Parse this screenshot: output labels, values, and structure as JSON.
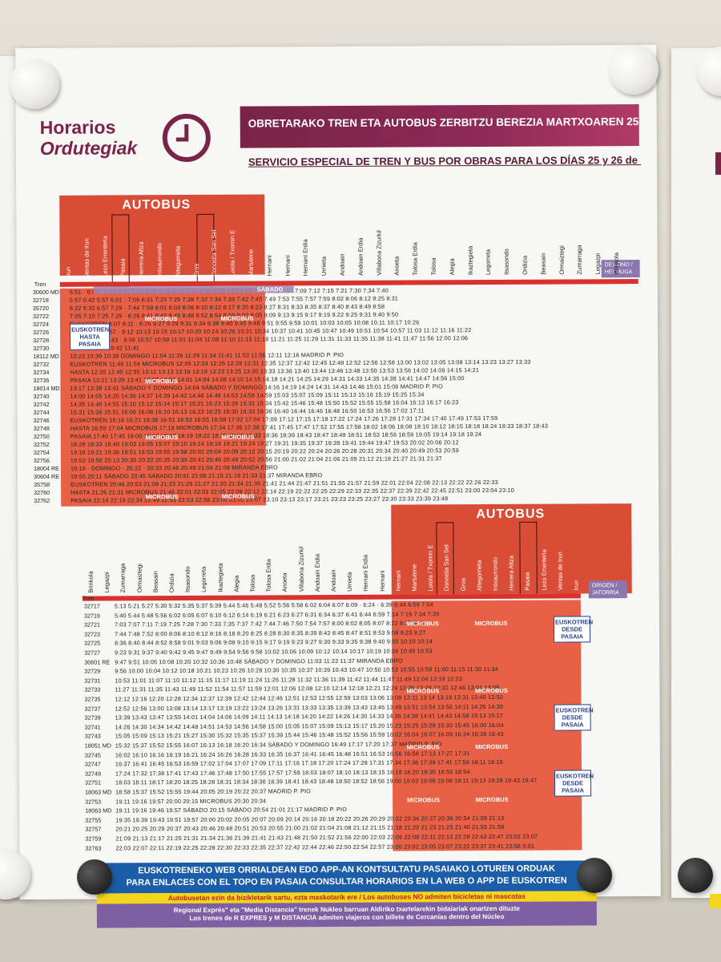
{
  "header": {
    "title_line1": "Horarios",
    "title_line2": "Ordutegiak",
    "banner_eu": "OBRETARAKO TREN ETA AUTOBUS ZERBITZU BEREZIA MARTXOAREN 25 ETA 26rako",
    "subtitle_es": "SERVICIO ESPECIAL DE TREN Y BUS POR OBRAS PARA LOS DÍAS 25 y 26 de  MARZO"
  },
  "top_table": {
    "bus_label": "AUTOBUS",
    "train_label": "Tren",
    "destination_label": "DESTINO / HELMUGA",
    "stations": [
      "Irun",
      "Ventas de Irun",
      "Lezo Errenteria",
      "Pasaia",
      "Herrera Altza",
      "Intxaurrondo",
      "Altegorrieta",
      "Gros",
      "Donostia San Sebastian",
      "Loiola / Txomin Enea",
      "Martutene",
      "Hernani",
      "Hernani",
      "Hernani Erdia",
      "Urnieta",
      "Andoain",
      "Andoain Erdia",
      "Villabona Zizurkil",
      "Anoeta",
      "Tolosa Erdia",
      "Tolosa",
      "Alegia",
      "Ikaztegieta",
      "Legorreta",
      "Itsasondo",
      "Ordizia",
      "Beasain",
      "Ormaiztegi",
      "Zumarraga",
      "Legazpi",
      "Brinkola"
    ],
    "rows": [
      {
        "train": "30600 MD",
        "times": "5:51  ·  6:07    ·   6:16    6:31  6:33 6:35  6:38  6:42  6:44  6:49  6:52  6:55  6:59  7:03  7:05  7:07  7:09  7:12  7:15  7:21  7:30  7:34  7:40"
      },
      {
        "train": "32718",
        "times": "5:57 6:42 5:57 6:01   ·   7:06    6:31  7:23  7:25  7:28  7:32  7:34  7:39  7:42  7:45  7:49  7:53  7:55  7:57  7:59  8:02  8:06  8:12  8:25  8:31"
      },
      {
        "train": "35720",
        "times": "6:22 6:32 6:57 7:29   ·   7:44    7:59  8:01  8:03  8:06  8:10  8:12  8:17  8:20  8:23  8:27  8:31  8:33  8:35  8:37  8:40  8:43  8:49  8:58"
      },
      {
        "train": "32722",
        "times": "7:05 7:10 7:25 7:29   ·   8:26    8:41  8:43  8:45  8:48  8:52  8:54  8:59  9:02  9:05  9:09  9:13  9:15  9:17  9:19  9:22  9:25  9:31  9:40  9:50"
      },
      {
        "train": "32724",
        "times": "EUSKOTREN  8:07  8:11   ·   8:26    9:27  9:29  9:31  9:34  9:38  9:40  9:45  9:48  9:51  9:55  9:59 10:01 10:03 10:05 10:08 10:11 10:17 10:26"
      },
      {
        "train": "32726",
        "times": "HASTA   8:53  8:57   ·   9:12    10:13 10:15 10:17 10:20 10:24 10:26 10:31 10:34 10:37 10:41 10:45 10:47 10:49 10:51 10:54 10:57 11:03 11:12 11:16 11:22"
      },
      {
        "train": "32728",
        "times": "PASAIA  9:39  9:43   ·   9:58    10:57 10:59 11:01 11:04 11:08 11:10 11:15 11:18 11:21 11:25 11:29 11:31 11:33 11:35 11:38 11:41 11:47 11:56 12:00 12:06"
      },
      {
        "train": "32730",
        "times": "10:22 10:27   ·   10:42   11:41"
      },
      {
        "train": "18112 MD",
        "times": "10:23  10:36 10:38  DOMINGO  11:04   11:26 11:29 11:34   11:41   11:53 11:56 12:11 12:16   MADRID P. PIO"
      },
      {
        "train": "32732",
        "times": "EUSKOTREN 11:49 11:54 MICROBUS 12:09  12:24 12:26 12:28 12:31 12:35 12:37 12:42 12:45 12:48 12:52 12:56 12:58 13:00 13:02 13:05 13:08 13:14 13:23 13:27 13:33"
      },
      {
        "train": "32734",
        "times": "HASTA 12:35 12:40   12:55  13:11 13:13 13:16 13:19 13:23 13:25 13:30 13:33 13:36 13:40 13:44 13:46 13:48 13:50 13:53 13:56 14:02 14:09 14:15 14:21"
      },
      {
        "train": "32736",
        "times": "PASAIA 13:21 13:26   13:41  13:57 13:59 14:01 14:04 14:08 14:10 14:15 14:18 14:21 14:25 14:29 14:31 14:33 14:35 14:38 14:41 14:47 14:56 15:00"
      },
      {
        "train": "18014 MD",
        "times": "13:17  13:38 13:41  SÁBADO Y DOMINGO  14:04  SÁBADO Y DOMINGO  14:16 14:19 14:24  14:31  14:43 14:46  15:01 15:06  MADRID P. PIO"
      },
      {
        "train": "32740",
        "times": "14:00 14:05   14:20   14:36 14:37 14:39 14:42 14:46 14:48 14:53 14:56 14:59 15:03 15:07 15:09 15:11 15:13 15:16 15:19 15:25 15:34"
      },
      {
        "train": "32742",
        "times": "14:35 14:40   14:55   15:10 15:12 15:14 15:17 15:21 15:23 15:28 15:31 15:34 15:42 15:46 15:48 15:50 15:52 15:55 15:58 16:04 16:13 16:17 16:23"
      },
      {
        "train": "32744",
        "times": "15:31 15:36   15:51   16:06 16:08 16:10 16:13 16:23 16:25 16:30 16:33 16:36 16:40 16:44 16:46 16:48 16:50 16:53 16:56 17:02 17:11"
      },
      {
        "train": "32746",
        "times": "EUSKOTREN 16:16 16:21   16:36   16:51 16:53 16:55 16:58 17:02 17:04 17:09 17:12 17:15 17:18 17:22 17:24 17:26 17:28 17:31 17:34 17:40 17:49 17:53 17:59"
      },
      {
        "train": "32748",
        "times": "HASTA 16:59 17:04 MICROBUS 17:19  MICROBUS  17:34 17:36 17:38 17:41 17:45 17:47 17:52 17:55 17:58 18:02 18:06 18:08 18:10 18:12 18:15 18:18 18:24 18:33 18:37 18:43"
      },
      {
        "train": "32750",
        "times": "PASAIA 17:40 17:45   18:00   18:16 18:17 18:19 18:22 18:26 18:28 18:33 18:36 18:39 18:43 18:47 18:49 18:51 18:53 18:56 18:59 19:05 19:14 19:18 19:24"
      },
      {
        "train": "32752",
        "times": "18:28 18:33   18:48   19:03 19:05 19:07 19:10 19:14 19:16 19:21 19:24 19:27 19:31 19:35 19:37 19:39 19:41 19:44 19:47 19:53 20:02 20:06 20:12"
      },
      {
        "train": "32754",
        "times": "19:16 19:21   19:36   19:51 19:53 19:55 19:58 20:02 20:04 20:09 20:12 20:15 20:19 20:22 20:24 20:26 20:28 20:31 20:34 20:40 20:49 20:53 20:59"
      },
      {
        "train": "32756",
        "times": "19:53 19:58   20:13   20:30 20:32 20:35 20:39 20:41 20:46 20:49 20:52 20:56 21:00 21:02 21:04 21:06 21:09 21:12 21:18 21:27 21:31 21:37"
      },
      {
        "train": "18004 RE",
        "times": "19:16  ·  DOMINGO  ·  20:22  ·  20:33  20:46 20:49  21:04 21:08  MIRANDA EBRO"
      },
      {
        "train": "30604 RE",
        "times": "19:56  20:11  SÁBADO  20:45  SÁBADO  20:51  21:06  21:15 21:18  21:33 21:37  MIRANDA EBRO"
      },
      {
        "train": "35758",
        "times": "EUSKOTREN 20:46 20:53   21:08   21:23 21:25 21:27 21:30 21:34 21:36 21:41 21:44 21:47 21:51 21:55 21:57 21:59 22:01 22:04 22:08 22:13 22:22 22:26 22:33"
      },
      {
        "train": "32760",
        "times": "HASTA 21:26 21:31 MICROBUS 21:46  22:01 22:03 22:05 22:08 22:12 22:14 22:19 22:22 22:25 22:29 22:33 22:35 22:37 22:39 22:42 22:45 22:51 23:00 23:04 23:10"
      },
      {
        "train": "32762",
        "times": "PASAIA 22:14 22:19   22:34   22:49 22:51 22:53 22:56 23:00 23:02 23:07 23:10 23:13 23:17 23:21 23:23 23:25 23:27 23:30 23:33 23:39 23:48"
      }
    ],
    "band_sabado": "SÁBADO",
    "band_domingo": "DOMINGO",
    "band_sab_dom": "SÁBADO Y DOMINGO",
    "microbus": "MICROBUS",
    "euskotren_hasta": [
      "EUSKOTREN",
      "HASTA",
      "PASAIA"
    ],
    "dest_madrid": "MADRID P. PIO",
    "dest_miranda": "MIRANDA EBRO"
  },
  "bottom_table": {
    "bus_label": "AUTOBUS",
    "train_label": "Tren",
    "origin_label": "ORIGEN / JATORRIA",
    "stations": [
      "Brinkola",
      "Legazpi",
      "Zumarraga",
      "Ormaiztegi",
      "Beasain",
      "Ordizia",
      "Itsasondo",
      "Legorreta",
      "Ikaztegieta",
      "Alegia",
      "Tolosa",
      "Tolosa Erdia",
      "Anoeta",
      "Villabona Zizurkil",
      "Andoain Erdia",
      "Andoain",
      "Urnieta",
      "Hernani Erdia",
      "Hernani",
      "Hernani",
      "Martutene",
      "Loiola / Txomin Enea",
      "Donostia San Sebastian",
      "Gros",
      "Altegorrieta",
      "Intxaurrondo",
      "Herrera Altza",
      "Pasaia",
      "Lezo Errenteria",
      "Ventas de Irun",
      "Irun"
    ],
    "rows": [
      {
        "train": "32717",
        "times": "5:13 5:21 5:27 5:30 5:32 5:35 5:37 5:39 5:44 5:46 5:48 5:52 5:56 5:58 6:02 6:04 6:07 6:09  ·  6:24  ·  6:39 6:44 6:59 7:04"
      },
      {
        "train": "32719",
        "times": "5:40 5:44 5:48 5:56 6:02 6:05 6:07 6:10 6:12 6:14 6:19 6:21 6:23 6:27 6:31 6:34 6:37 6:41 6:44  6:59  7:14 7:19 7:34 7:39"
      },
      {
        "train": "32721",
        "times": "7:03 7:07 7:11 7:19 7:25 7:28 7:30 7:33 7:35 7:37 7:42 7:44 7:46 7:50 7:54 7:57 8:00 8:02 8:05 8:07  8:22  8:37 8:41"
      },
      {
        "train": "32723",
        "times": "7:44 7:48 7:52 8:00 8:06 8:10 8:12 8:16 8:18 8:20 8:25 8:28 8:30 8:35 8:39 8:42 8:45 8:47 8:51 8:53  9:08  9:23 9:27"
      },
      {
        "train": "32725",
        "times": "8:36 8:40 8:44 8:52 8:58 9:01 9:03 9:06 9:08 9:10 9:15 9:17 9:19 9:23 9:27 9:30 9:33 9:35 9:38 9:40  9:55  10:10 10:14"
      },
      {
        "train": "32727",
        "times": "9:23 9:31 9:37 9:40 9:42 9:45 9:47 9:49 9:54 9:56 9:58 10:02 10:06 10:09 10:12 10:14 10:17 10:19  10:34  10:49 10:53"
      },
      {
        "train": "30601 RE",
        "times": "9:47 9:51  10:05 10:08  10:20  10:32 10:36  10:48  SÁBADO Y DOMINGO  11:03  11:22 11:37  MIRANDA EBRO"
      },
      {
        "train": "32729",
        "times": "9:56 10:00 10:04 10:12 10:18 10:21 10:23 10:26 10:28 10:30 10:35 10:37 10:39 10:43 10:47 10:50 10:53 10:55 10:58 11:00  11:15  11:30 11:34"
      },
      {
        "train": "32731",
        "times": "10:53 11:01 11:07 11:10 11:12 11:15 11:17 11:19 11:24 11:26 11:28 11:32 11:36 11:39 11:42 11:44 11:47 11:49  12:04  12:19 12:23"
      },
      {
        "train": "32733",
        "times": "11:27 11:31 11:35 11:43 11:49 11:52 11:54 11:57 11:59 12:01 12:06 12:08 12:10 12:14 12:18 12:21 12:24 12:26 12:29 12:31  12:46  13:01 13:05"
      },
      {
        "train": "32735",
        "times": "12:12 12:16 12:20 12:28 12:34 12:37 12:39 12:42 12:44 12:46 12:51 12:53 12:55 12:59 13:03 13:06 13:09 13:11 13:14 13:16  13:31  13:46 13:50"
      },
      {
        "train": "32737",
        "times": "12:52 12:56 13:00 13:08 13:14 13:17 13:19 13:22 13:24 13:26 13:31 13:33 13:35 13:39 13:43 13:46 13:49 13:51 13:54 13:56  14:11  14:26 14:30"
      },
      {
        "train": "32739",
        "times": "13:39 13:43 13:47 13:55 14:01 14:04 14:06 14:09 14:11 14:13 14:18 14:20 14:22 14:26 14:30 14:33 14:36 14:38 14:41 14:43  14:58  15:13 15:17"
      },
      {
        "train": "32741",
        "times": "14:26 14:30 14:34 14:42 14:48 14:51 14:53 14:56 14:58 15:00 15:05 15:07 15:09 15:13 15:17 15:20 15:23 15:25 15:28 15:30  15:45  16:00 16:04"
      },
      {
        "train": "32743",
        "times": "15:05 15:09 15:13 15:21 15:27 15:30 15:32 15:35 15:37 15:39 15:44 15:46 15:48 15:52 15:56 15:59 16:02 16:04 16:07 16:09  16:24  16:39 16:43"
      },
      {
        "train": "18051 MD",
        "times": "15:32 15:37  15:52 15:55  16:07  16:13 16:18 16:20  16:34  SÁBADO Y DOMINGO  16:49  17:17 17:20  17:37  MADRID P. PIO"
      },
      {
        "train": "32745",
        "times": "16:02 16:10 16:16 16:19 16:21 16:24 16:26 16:28 16:33 16:35 16:37 16:41 16:45 16:48 16:51 16:53 16:56 16:58  17:13  17:27 17:31"
      },
      {
        "train": "32747",
        "times": "16:37 16:41 16:45 16:53 16:59 17:02 17:04 17:07 17:09 17:11 17:16 17:18 17:20 17:24 17:28 17:31 17:34 17:36 17:39 17:41  17:56  18:11 18:15"
      },
      {
        "train": "32749",
        "times": "17:24 17:32 17:38 17:41 17:43 17:46 17:48 17:50 17:55 17:57 17:59 18:03 18:07 18:10 18:13 18:15 18:18 18:20  18:35  18:50 18:54"
      },
      {
        "train": "32751",
        "times": "18:03 18:11 18:17 18:20 18:25 18:28 18:31 18:34 18:36 18:39 18:41 18:43 18:48 18:50 18:52 18:56 19:00 19:03 19:06 19:08 19:11 19:13  19:28  19:43 19:47"
      },
      {
        "train": "18063 MD",
        "times": "18:58 15:37  15:52 15:55  19:44  20:05  20:19 20:22  20:37  MADRID P. PIO"
      },
      {
        "train": "32753",
        "times": "19:11 19:16  19:57  20:00 20:15  MICROBUS  20:30 20:34"
      },
      {
        "train": "18063 MD",
        "times": "19:11 19:16  19:46  19:57  SÁBADO  20:15  SÁBADO  20:54 21:01  21:17  MADRID P. PIO"
      },
      {
        "train": "32755",
        "times": "19:35 19:39 19:43 19:51 19:57 20:00 20:02 20:05 20:07 20:09 20:14 20:16 20:18 20:22 20:26 20:29 20:32 20:34 20:37 20:39  20:54  21:09 21:13"
      },
      {
        "train": "32757",
        "times": "20:21 20:25 20:29 20:37 20:43 20:46 20:48 20:51 20:53 20:55 21:00 21:02 21:04 21:08 21:12 21:15 21:18 21:20 21:23 21:25  21:40  21:55 21:59"
      },
      {
        "train": "32759",
        "times": "21:09 21:13 21:17 21:25 21:31 21:34 21:36 21:39 21:41 21:43 21:48 21:50 21:52 21:56 22:00 22:03 22:06 22:08 22:11 22:13  22:28  22:43 22:47 23:02 23:07"
      },
      {
        "train": "32763",
        "times": "22:03 22:07 22:11 22:19 22:25 22:28 22:30 22:33 22:35 22:37 22:42 22:44 22:46 22:50 22:54 22:57 23:00 23:02 23:05 23:07  23:22  23:37 23:41 23:56 0:01"
      }
    ],
    "euskotren_desde": [
      "EUSKOTREN",
      "DESDE",
      "PASAIA"
    ],
    "microbus": "MICROBUS",
    "dest_madrid": "MADRID P. PIO",
    "dest_miranda": "MIRANDA EBRO"
  },
  "footer": {
    "blue_line1": "EUSKOTRENEKO WEB ORRIALDEAN EDO APP-AN KONTSULTATU PASAIAKO LOTUREN ORDUAK",
    "blue_line2": "PARA ENLACES CON EL TOPO EN PASAIA CONSULTAR HORARIOS EN LA WEB O APP DE EUSKOTREN",
    "yellow": "Autobusetan ezin da bizikletarik sartu, ezta maskotarik ere / Los autobuses NO admiten bicicletas ni mascotas",
    "purple_line1": "Regional Exprés\" eta \"Media Distancia\" trenek Nukleo barruan Aldiriko txartelarekin bidaiariak onartzen dituzte",
    "purple_line2": "Los trenes de R  EXPRES y M  DISTANCIA admiten viajeros con billete de Cercanías dentro del Núcleo"
  },
  "colors": {
    "brand": "#7a2348",
    "bus_red": "#e86046",
    "band_purple": "#9e87b6",
    "footer_blue": "#1b5da8",
    "footer_yellow": "#f3d51c"
  }
}
